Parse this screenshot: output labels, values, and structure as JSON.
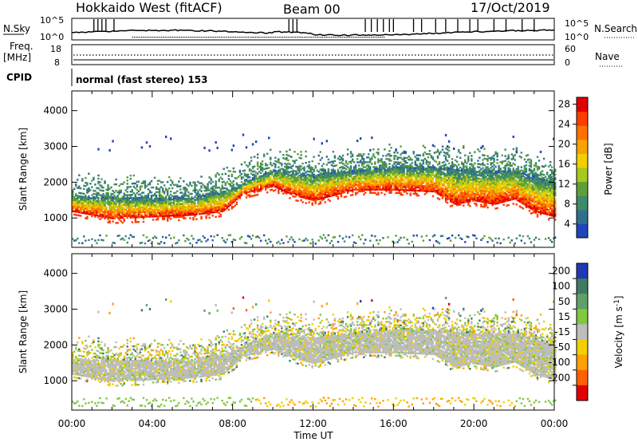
{
  "header": {
    "radar": "Hokkaido West (fitACF)",
    "beam": "Beam 00",
    "date": "17/Oct/2019"
  },
  "top_strip": {
    "left_label": "N.Sky",
    "right_label": "N.Search",
    "left_ticks": [
      "10^5",
      "10^0"
    ],
    "right_ticks": [
      "10^5",
      "10^0"
    ]
  },
  "freq_strip": {
    "left_label_1": "Freq.",
    "left_label_2": "[MHz]",
    "left_ticks": [
      "18",
      "8"
    ],
    "right_label": "Nave",
    "right_ticks": [
      "60",
      "0"
    ]
  },
  "cpid": {
    "label": "CPID",
    "text": "normal (fast stereo) 153"
  },
  "xaxis": {
    "label": "Time UT",
    "ticks": [
      "00:00",
      "04:00",
      "08:00",
      "12:00",
      "16:00",
      "20:00",
      "00:00"
    ]
  },
  "chart_data": [
    {
      "type": "heatmap",
      "name": "power",
      "ylabel": "Slant Range [km]",
      "yticks": [
        1000,
        2000,
        3000,
        4000
      ],
      "ylim": [
        180,
        4550
      ],
      "xlim_hours": [
        0,
        24
      ],
      "colorbar": {
        "label": "Power [dB]",
        "ticks": [
          "4",
          "8",
          "12",
          "16",
          "20",
          "24",
          "28"
        ],
        "range": [
          0,
          30
        ],
        "colors": [
          "#0a1ee6",
          "#1f45b8",
          "#2f6f8e",
          "#3f8a6a",
          "#5f9f3a",
          "#a8c81e",
          "#f0d000",
          "#f7a400",
          "#ff7000",
          "#ff3c00",
          "#e00000"
        ]
      },
      "traces_description_points": {
        "lower_edge_km_by_hour": [
          [
            0,
            1150
          ],
          [
            2,
            950
          ],
          [
            4,
            1000
          ],
          [
            6,
            1050
          ],
          [
            7.5,
            1150
          ],
          [
            8.5,
            1650
          ],
          [
            10,
            1850
          ],
          [
            11,
            1600
          ],
          [
            12,
            1450
          ],
          [
            13,
            1600
          ],
          [
            14,
            1750
          ],
          [
            16,
            1750
          ],
          [
            18,
            1700
          ],
          [
            19,
            1350
          ],
          [
            20,
            1450
          ],
          [
            21,
            1350
          ],
          [
            22,
            1500
          ],
          [
            23,
            1150
          ],
          [
            24,
            1000
          ]
        ],
        "upper_edge_km_by_hour": [
          [
            0,
            1600
          ],
          [
            2,
            1550
          ],
          [
            4,
            1550
          ],
          [
            6,
            1550
          ],
          [
            8,
            1800
          ],
          [
            9,
            2100
          ],
          [
            10,
            2300
          ],
          [
            12,
            2200
          ],
          [
            14,
            2300
          ],
          [
            16,
            2400
          ],
          [
            18,
            2400
          ],
          [
            20,
            2300
          ],
          [
            22,
            2300
          ],
          [
            24,
            2000
          ]
        ]
      }
    },
    {
      "type": "heatmap",
      "name": "velocity",
      "ylabel": "Slant Range [km]",
      "yticks": [
        1000,
        2000,
        3000,
        4000
      ],
      "ylim": [
        180,
        4550
      ],
      "xlim_hours": [
        0,
        24
      ],
      "colorbar": {
        "label": "Velocity [m s-1]",
        "ticks": [
          "200",
          "100",
          "50",
          "15",
          "-15",
          "-50",
          "-100",
          "-200"
        ],
        "colors": [
          "#2038b8",
          "#3f7a62",
          "#5fa06a",
          "#80c840",
          "#bdbdbd",
          "#f0d000",
          "#ffa000",
          "#ff6000",
          "#e00000"
        ]
      }
    }
  ]
}
